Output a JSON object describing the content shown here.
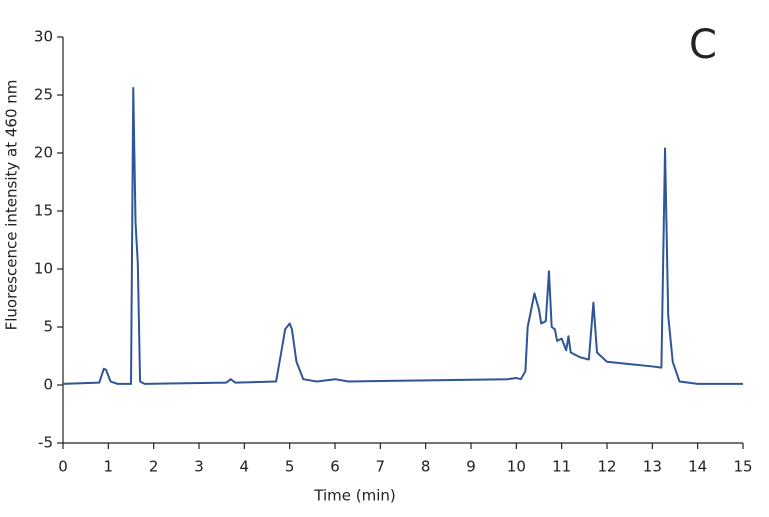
{
  "chart_data": {
    "type": "line",
    "x_label": "Time (min)",
    "y_label": "Fluorescence intensity at 460 nm",
    "annotation": "C",
    "x": [
      0,
      0.8,
      0.9,
      0.95,
      1.05,
      1.2,
      1.5,
      1.55,
      1.6,
      1.65,
      1.7,
      1.8,
      3.6,
      3.7,
      3.8,
      4.7,
      4.8,
      4.9,
      5.0,
      5.05,
      5.15,
      5.3,
      5.6,
      6.0,
      6.3,
      9.8,
      10.0,
      10.1,
      10.2,
      10.25,
      10.4,
      10.5,
      10.55,
      10.65,
      10.72,
      10.78,
      10.85,
      10.9,
      11.0,
      11.1,
      11.15,
      11.2,
      11.4,
      11.6,
      11.7,
      11.78,
      12.0,
      12.5,
      13.0,
      13.2,
      13.28,
      13.35,
      13.45,
      13.6,
      14.0,
      15
    ],
    "series": [
      {
        "name": "Fluorescence",
        "color": "#2f5597",
        "values": [
          0.1,
          0.2,
          1.4,
          1.3,
          0.3,
          0.1,
          0.1,
          25.6,
          14,
          10.5,
          0.3,
          0.1,
          0.2,
          0.5,
          0.2,
          0.3,
          2.5,
          4.8,
          5.3,
          4.8,
          2,
          0.5,
          0.3,
          0.5,
          0.3,
          0.5,
          0.6,
          0.5,
          1.2,
          5,
          7.9,
          6.5,
          5.3,
          5.5,
          9.8,
          5.0,
          4.8,
          3.8,
          4.0,
          3.0,
          4.2,
          2.8,
          2.4,
          2.2,
          7.1,
          2.8,
          2.0,
          1.8,
          1.6,
          1.5,
          20.4,
          6,
          2,
          0.3,
          0.1,
          0.1
        ]
      }
    ],
    "xlim": [
      0,
      15
    ],
    "xticks": [
      0,
      1,
      2,
      3,
      4,
      5,
      6,
      7,
      8,
      9,
      10,
      11,
      12,
      13,
      14,
      15
    ],
    "ylim": [
      -5,
      30
    ],
    "yticks": [
      -5,
      0,
      5,
      10,
      15,
      20,
      25,
      30
    ]
  }
}
